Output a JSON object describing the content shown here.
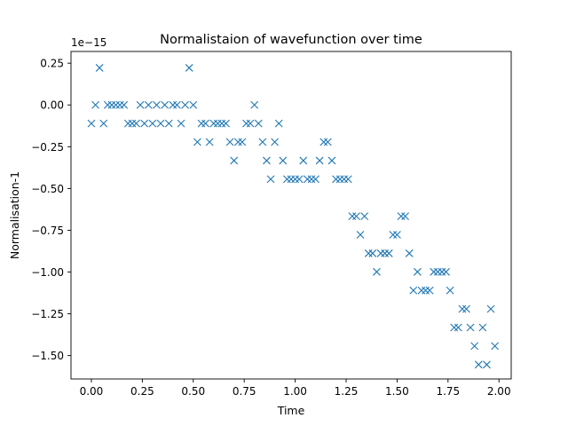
{
  "chart_data": {
    "type": "scatter",
    "title": "Normalistaion of wavefunction over time",
    "xlabel": "Time",
    "ylabel": "Normalisation-1",
    "y_multiplier_label": "1e−15",
    "marker": "x",
    "series_color": "#1f77b4",
    "grid": false,
    "legend": "none",
    "xlim": [
      -0.1,
      2.06
    ],
    "ylim": [
      -1.64,
      0.32
    ],
    "x_ticks": [
      0.0,
      0.25,
      0.5,
      0.75,
      1.0,
      1.25,
      1.5,
      1.75,
      2.0
    ],
    "x_tick_labels": [
      "0.00",
      "0.25",
      "0.50",
      "0.75",
      "1.00",
      "1.25",
      "1.50",
      "1.75",
      "2.00"
    ],
    "y_ticks": [
      0.25,
      0.0,
      -0.25,
      -0.5,
      -0.75,
      -1.0,
      -1.25,
      -1.5
    ],
    "y_tick_labels": [
      "0.25",
      "0.00",
      "−0.25",
      "−0.50",
      "−0.75",
      "−1.00",
      "−1.25",
      "−1.50"
    ],
    "x": [
      0.0,
      0.02,
      0.04,
      0.06,
      0.08,
      0.1,
      0.12,
      0.14,
      0.16,
      0.18,
      0.2,
      0.22,
      0.24,
      0.26,
      0.28,
      0.3,
      0.32,
      0.34,
      0.36,
      0.38,
      0.4,
      0.42,
      0.44,
      0.46,
      0.48,
      0.5,
      0.52,
      0.54,
      0.56,
      0.58,
      0.6,
      0.62,
      0.64,
      0.66,
      0.68,
      0.7,
      0.72,
      0.74,
      0.76,
      0.78,
      0.8,
      0.82,
      0.84,
      0.86,
      0.88,
      0.9,
      0.92,
      0.94,
      0.96,
      0.98,
      1.0,
      1.02,
      1.04,
      1.06,
      1.08,
      1.1,
      1.12,
      1.14,
      1.16,
      1.18,
      1.2,
      1.22,
      1.24,
      1.26,
      1.28,
      1.3,
      1.32,
      1.34,
      1.36,
      1.38,
      1.4,
      1.42,
      1.44,
      1.46,
      1.48,
      1.5,
      1.52,
      1.54,
      1.56,
      1.58,
      1.6,
      1.62,
      1.64,
      1.66,
      1.68,
      1.7,
      1.72,
      1.74,
      1.76,
      1.78,
      1.8,
      1.82,
      1.84,
      1.86,
      1.88,
      1.9,
      1.92,
      1.94,
      1.96,
      1.98
    ],
    "y": [
      -0.111,
      0.0,
      0.222,
      -0.111,
      0.0,
      0.0,
      0.0,
      0.0,
      0.0,
      -0.111,
      -0.111,
      -0.111,
      0.0,
      -0.111,
      0.0,
      -0.111,
      0.0,
      -0.111,
      0.0,
      -0.111,
      0.0,
      0.0,
      -0.111,
      0.0,
      0.222,
      0.0,
      -0.222,
      -0.111,
      -0.111,
      -0.222,
      -0.111,
      -0.111,
      -0.111,
      -0.111,
      -0.222,
      -0.333,
      -0.222,
      -0.222,
      -0.111,
      -0.111,
      0.0,
      -0.111,
      -0.222,
      -0.333,
      -0.444,
      -0.222,
      -0.111,
      -0.333,
      -0.444,
      -0.444,
      -0.444,
      -0.444,
      -0.333,
      -0.444,
      -0.444,
      -0.444,
      -0.333,
      -0.222,
      -0.222,
      -0.333,
      -0.444,
      -0.444,
      -0.444,
      -0.444,
      -0.666,
      -0.666,
      -0.777,
      -0.666,
      -0.888,
      -0.888,
      -0.999,
      -0.888,
      -0.888,
      -0.888,
      -0.777,
      -0.777,
      -0.666,
      -0.666,
      -0.888,
      -1.11,
      -0.999,
      -1.11,
      -1.11,
      -1.11,
      -0.999,
      -0.999,
      -0.999,
      -0.999,
      -1.11,
      -1.332,
      -1.332,
      -1.221,
      -1.221,
      -1.332,
      -1.443,
      -1.554,
      -1.332,
      -1.554,
      -1.221,
      -1.443
    ]
  }
}
